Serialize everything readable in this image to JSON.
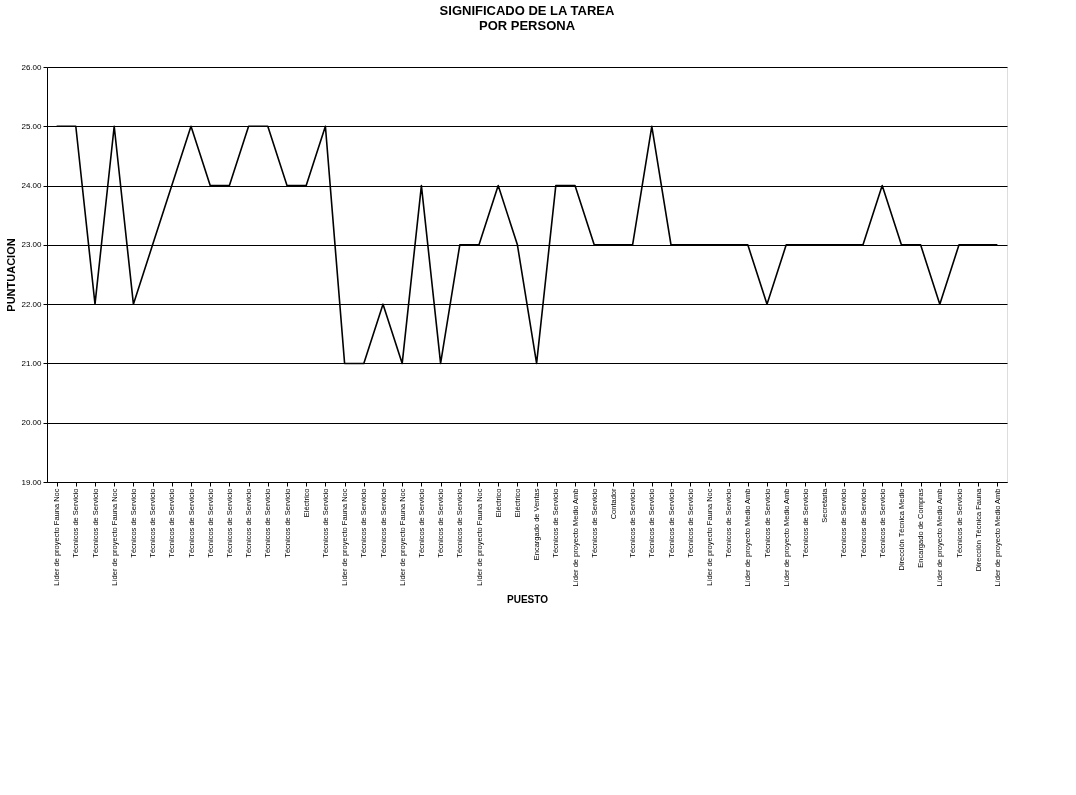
{
  "chart_data": {
    "type": "line",
    "title": [
      "SIGNIFICADO DE LA TAREA",
      "POR PERSONA"
    ],
    "xlabel": "PUESTO",
    "ylabel": "PUNTUACION",
    "categories": [
      "Líder de proyecto Fauna Noc",
      "Técnicos de Servicio",
      "Técnicos de Servicio",
      "Líder de proyecto Fauna Noc",
      "Técnicos de Servicio",
      "Técnicos de Servicio",
      "Técnicos de Servicio",
      "Técnicos de Servicio",
      "Técnicos de Servicio",
      "Técnicos de Servicio",
      "Técnicos de Servicio",
      "Técnicos de Servicio",
      "Técnicos de Servicio",
      "Eléctrico",
      "Técnicos de Servicio",
      "Líder de proyecto Fauna Noc",
      "Técnicos de Servicio",
      "Técnicos de Servicio",
      "Líder de proyecto Fauna Noc",
      "Técnicos de Servicio",
      "Técnicos de Servicio",
      "Técnicos de Servicio",
      "Líder de proyecto Fauna Noc",
      "Eléctrico",
      "Eléctrico",
      "Encargado de Ventas",
      "Técnicos de Servicio",
      "Líder de proyecto Medio Amb",
      "Técnicos de Servicio",
      "Contador",
      "Técnicos de Servicio",
      "Técnicos de Servicio",
      "Técnicos de Servicio",
      "Técnicos de Servicio",
      "Líder de proyecto Fauna Noc",
      "Técnicos de Servicio",
      "Líder de proyecto Medio Amb",
      "Técnicos de Servicio",
      "Líder de proyecto Medio Amb",
      "Técnicos de Servicio",
      "Secretaria",
      "Técnicos de Servicio",
      "Técnicos de Servicio",
      "Técnicos de Servicio",
      "Dirección Técnica Medio",
      "Encargado de Compras",
      "Líder de proyecto Medio Amb",
      "Técnicos de Servicio",
      "Dirección Técnica Fauna",
      "Líder de proyecto Medio Amb"
    ],
    "series": [
      {
        "color": "#000000",
        "values": [
          25,
          25,
          22,
          25,
          22,
          23,
          24,
          25,
          24,
          24,
          25,
          25,
          24,
          24,
          25,
          21,
          21,
          22,
          21,
          24,
          21,
          23,
          23,
          24,
          23,
          21,
          24,
          24,
          23,
          23,
          23,
          25,
          23,
          23,
          23,
          23,
          23,
          22,
          23,
          23,
          23,
          23,
          23,
          24,
          23,
          23,
          22,
          23,
          23,
          23
        ]
      }
    ],
    "ylim": [
      19,
      26
    ],
    "yticks": [
      {
        "value": 19,
        "label": "19.00"
      },
      {
        "value": 20,
        "label": "20.00"
      },
      {
        "value": 21,
        "label": "21.00"
      },
      {
        "value": 22,
        "label": "22.00"
      },
      {
        "value": 23,
        "label": "23.00"
      },
      {
        "value": 24,
        "label": "24.00"
      },
      {
        "value": 25,
        "label": "25.00"
      },
      {
        "value": 26,
        "label": "26.00"
      }
    ],
    "grid": "y",
    "marker": "none",
    "line_style": "solid"
  }
}
